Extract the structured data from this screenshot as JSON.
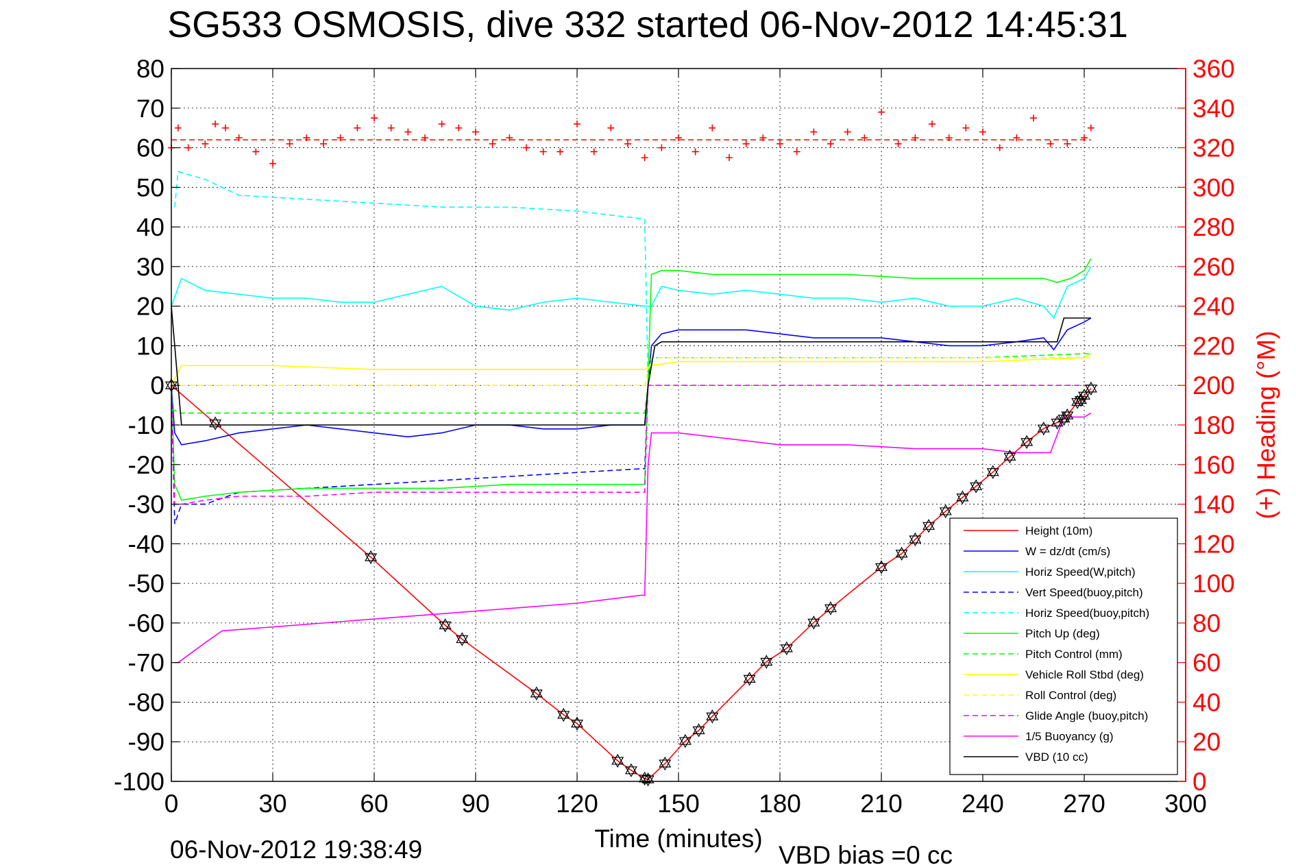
{
  "chart_data": {
    "type": "line",
    "title": "SG533 OSMOSIS, dive 332 started 06-Nov-2012 14:45:31",
    "xlabel": "Time (minutes)",
    "ylabel_right": "(+) Heading (°M)",
    "xlim": [
      0,
      300
    ],
    "ylim": [
      -100,
      80
    ],
    "ylim_right": [
      0,
      360
    ],
    "x_ticks": [
      "0",
      "30",
      "60",
      "90",
      "120",
      "150",
      "180",
      "210",
      "240",
      "270",
      "300"
    ],
    "y_ticks": [
      "80",
      "70",
      "60",
      "50",
      "40",
      "30",
      "20",
      "10",
      "0",
      "-10",
      "-20",
      "-30",
      "-40",
      "-50",
      "-60",
      "-70",
      "-80",
      "-90",
      "-100"
    ],
    "y_ticks_right": [
      "360",
      "340",
      "320",
      "300",
      "280",
      "260",
      "240",
      "220",
      "200",
      "180",
      "160",
      "140",
      "120",
      "100",
      "80",
      "60",
      "40",
      "20",
      "0"
    ],
    "grid": true,
    "legend_position": "bottom-right",
    "footer_left": "06-Nov-2012 19:38:49",
    "footer_right": "VBD bias =0 cc",
    "series": [
      {
        "name": "Height (10m)",
        "color": "#ff0000",
        "style": "solid",
        "x": [
          0,
          13,
          59,
          81,
          86,
          108,
          116,
          120,
          132,
          136,
          140,
          141,
          146,
          152,
          156,
          160,
          171,
          176,
          182,
          190,
          195,
          210,
          216,
          220,
          224,
          229,
          234,
          238,
          243,
          248,
          253,
          258,
          262,
          264,
          265,
          268,
          269,
          270,
          272
        ],
        "y": [
          0,
          -9.6,
          -43.4,
          -60.6,
          -64.1,
          -77.8,
          -83.2,
          -85.4,
          -94.8,
          -97.2,
          -99.3,
          -99.5,
          -95.5,
          -89.8,
          -87.1,
          -83.6,
          -74.1,
          -69.8,
          -66.4,
          -59.9,
          -56.3,
          -45.9,
          -42.5,
          -38.9,
          -35.5,
          -31.8,
          -28.3,
          -25.5,
          -21.9,
          -18.0,
          -14.3,
          -10.9,
          -9.4,
          -8.4,
          -7.6,
          -4.2,
          -3.7,
          -2.6,
          -0.8
        ]
      },
      {
        "name": "W = dz/dt (cm/s)",
        "color": "#0000ff",
        "style": "solid",
        "x": [
          0,
          1,
          3,
          10,
          20,
          30,
          40,
          50,
          60,
          70,
          80,
          90,
          100,
          110,
          120,
          130,
          140,
          142,
          145,
          150,
          160,
          170,
          180,
          190,
          200,
          210,
          220,
          230,
          240,
          250,
          258,
          261,
          265,
          270,
          272
        ],
        "y": [
          0,
          -12,
          -15,
          -14,
          -12,
          -11,
          -10,
          -11,
          -12,
          -13,
          -12,
          -10,
          -10,
          -11,
          -11,
          -10,
          -10,
          10,
          13,
          14,
          14,
          14,
          13,
          12,
          12,
          12,
          11,
          10,
          10,
          11,
          12,
          9,
          14,
          16,
          17
        ]
      },
      {
        "name": "Horiz Speed(W,pitch)",
        "color": "#00ffff",
        "style": "solid",
        "x": [
          0,
          3,
          10,
          20,
          30,
          40,
          50,
          60,
          70,
          80,
          90,
          100,
          110,
          120,
          130,
          140,
          142,
          145,
          150,
          160,
          170,
          180,
          190,
          200,
          210,
          220,
          230,
          240,
          250,
          258,
          261,
          265,
          270,
          272
        ],
        "y": [
          20,
          27,
          24,
          23,
          22,
          22,
          21,
          21,
          23,
          25,
          20,
          19,
          21,
          22,
          21,
          20,
          20,
          25,
          24,
          23,
          24,
          23,
          22,
          22,
          21,
          22,
          20,
          20,
          22,
          20,
          17,
          25,
          27,
          30
        ]
      },
      {
        "name": "Vert Speed(buoy,pitch)",
        "color": "#0000ff",
        "style": "dashed",
        "x": [
          0,
          1,
          3,
          10,
          20,
          40,
          60,
          80,
          100,
          120,
          140,
          141
        ],
        "y": [
          0,
          -35,
          -30,
          -30,
          -27,
          -26,
          -25,
          -24,
          -23,
          -22,
          -21,
          0
        ]
      },
      {
        "name": "Horiz Speed(buoy,pitch)",
        "color": "#00ffff",
        "style": "dashed",
        "x": [
          1,
          2,
          10,
          20,
          40,
          60,
          80,
          100,
          120,
          140,
          141
        ],
        "y": [
          45,
          54,
          52,
          48,
          47,
          46,
          45,
          45,
          44,
          42,
          0
        ]
      },
      {
        "name": "Pitch Up (deg)",
        "color": "#00ff00",
        "style": "solid",
        "x": [
          0,
          1,
          3,
          10,
          20,
          40,
          60,
          80,
          100,
          120,
          140,
          142,
          145,
          150,
          160,
          180,
          200,
          220,
          240,
          258,
          262,
          266,
          270,
          272
        ],
        "y": [
          0,
          -25,
          -29,
          -28,
          -27,
          -26,
          -26,
          -26,
          -25,
          -25,
          -25,
          28,
          29,
          29,
          28,
          28,
          28,
          27,
          27,
          27,
          26,
          27,
          29,
          32
        ]
      },
      {
        "name": "Pitch Control (mm)",
        "color": "#00ff00",
        "style": "dashed",
        "x": [
          0,
          3,
          60,
          120,
          140,
          142,
          180,
          240,
          270,
          272
        ],
        "y": [
          -6,
          -7,
          -7,
          -7,
          -7,
          7,
          7,
          7,
          8,
          8
        ]
      },
      {
        "name": "Vehicle Roll Stbd (deg)",
        "color": "#ffff00",
        "style": "solid",
        "x": [
          0,
          3,
          30,
          60,
          90,
          120,
          140,
          142,
          150,
          180,
          210,
          240,
          270,
          272
        ],
        "y": [
          0,
          5,
          5,
          4,
          4,
          4,
          4,
          5,
          6,
          6,
          6,
          6,
          7,
          8
        ]
      },
      {
        "name": "Roll Control (deg)",
        "color": "#ffff00",
        "style": "dashed",
        "x": [
          0,
          140,
          142,
          272
        ],
        "y": [
          0,
          0,
          7,
          7
        ]
      },
      {
        "name": "Glide Angle (buoy,pitch)",
        "color": "#ff00ff",
        "style": "dashed",
        "x": [
          0,
          1,
          3,
          10,
          20,
          40,
          60,
          80,
          100,
          120,
          140,
          141,
          145,
          272
        ],
        "y": [
          0,
          -30,
          -30,
          -29,
          -28,
          -28,
          -27,
          -27,
          -27,
          -27,
          -27,
          0,
          0,
          0
        ]
      },
      {
        "name": "1/5 Buoyancy (g)",
        "color": "#ff00ff",
        "style": "solid",
        "x": [
          1,
          2,
          10,
          15,
          30,
          60,
          90,
          120,
          139,
          140,
          141,
          142,
          145,
          150,
          160,
          170,
          180,
          200,
          220,
          240,
          250,
          260,
          264,
          270,
          272
        ],
        "y": [
          -70,
          -70,
          -65,
          -62,
          -61,
          -59,
          -57,
          -55,
          -53,
          -53,
          -20,
          -12,
          -12,
          -12,
          -13,
          -14,
          -15,
          -15,
          -16,
          -16,
          -17,
          -17,
          -8,
          -8,
          -7
        ]
      },
      {
        "name": "VBD (10 cc)",
        "color": "#000000",
        "style": "solid",
        "x": [
          0,
          3,
          140,
          141,
          143,
          145,
          262,
          264,
          272
        ],
        "y": [
          20,
          -10,
          -10,
          0,
          10,
          11,
          11,
          17,
          17
        ]
      },
      {
        "name": "",
        "axis": "right",
        "color": "#ff0000",
        "style": "markers",
        "marker": "+",
        "x": [
          0,
          2,
          5,
          10,
          13,
          16,
          20,
          25,
          30,
          35,
          40,
          45,
          50,
          55,
          60,
          65,
          70,
          75,
          80,
          85,
          90,
          95,
          100,
          105,
          110,
          115,
          120,
          125,
          130,
          135,
          140,
          145,
          150,
          155,
          160,
          165,
          170,
          175,
          180,
          185,
          190,
          195,
          200,
          205,
          210,
          215,
          220,
          225,
          230,
          235,
          240,
          245,
          250,
          255,
          260,
          265,
          270,
          272
        ],
        "y": [
          320,
          330,
          320,
          322,
          332,
          330,
          325,
          318,
          312,
          322,
          325,
          322,
          325,
          330,
          335,
          330,
          328,
          325,
          332,
          330,
          328,
          322,
          325,
          320,
          318,
          318,
          332,
          318,
          330,
          322,
          315,
          320,
          325,
          318,
          330,
          315,
          322,
          325,
          322,
          318,
          328,
          322,
          328,
          325,
          338,
          322,
          325,
          332,
          325,
          330,
          328,
          320,
          325,
          335,
          322,
          322,
          325,
          330
        ]
      },
      {
        "name": "",
        "axis": "right",
        "color": "#ff0000",
        "style": "dashed",
        "x": [
          0,
          272
        ],
        "y": [
          324,
          324
        ]
      }
    ]
  }
}
